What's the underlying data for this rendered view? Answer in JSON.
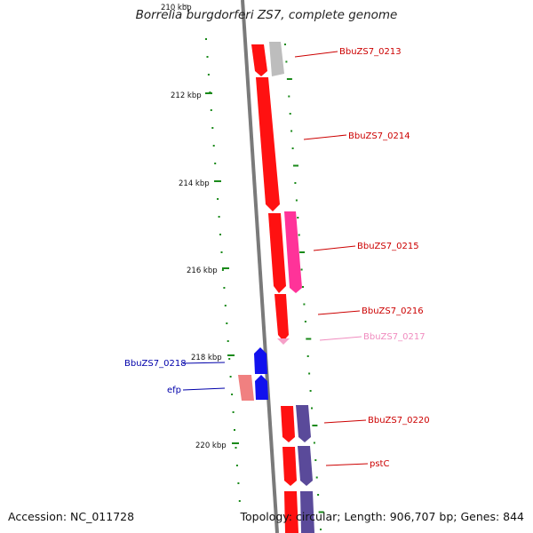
{
  "title": "Borrelia burgdorferi ZS7, complete genome",
  "footer": {
    "accession": "Accession: NC_011728",
    "topology": "Topology: circular; Length: 906,707 bp; Genes: 844"
  },
  "scale": {
    "labels": [
      "210 kbp",
      "212 kbp",
      "214 kbp",
      "216 kbp",
      "218 kbp",
      "220 kbp"
    ]
  },
  "gene_labels": [
    "BbuZS7_0213",
    "BbuZS7_0214",
    "BbuZS7_0215",
    "BbuZS7_0216",
    "BbuZS7_0217",
    "BbuZS7_0218",
    "efp",
    "BbuZS7_0220",
    "pstC"
  ],
  "colors": {
    "backbone": "#7a7a7a",
    "scale_ticks": "#1a8a1a",
    "cds": "#ff1111",
    "gray_feature": "#bdbdbd",
    "pink_feature": "#ff3399",
    "light_pink": "#f5a0c8",
    "blue_feature": "#1111ee",
    "salmon_feature": "#f08080",
    "purple_feature": "#5a4a9a",
    "label_red": "#cc0000",
    "label_blue": "#0000aa",
    "label_pink": "#f08cbf"
  }
}
